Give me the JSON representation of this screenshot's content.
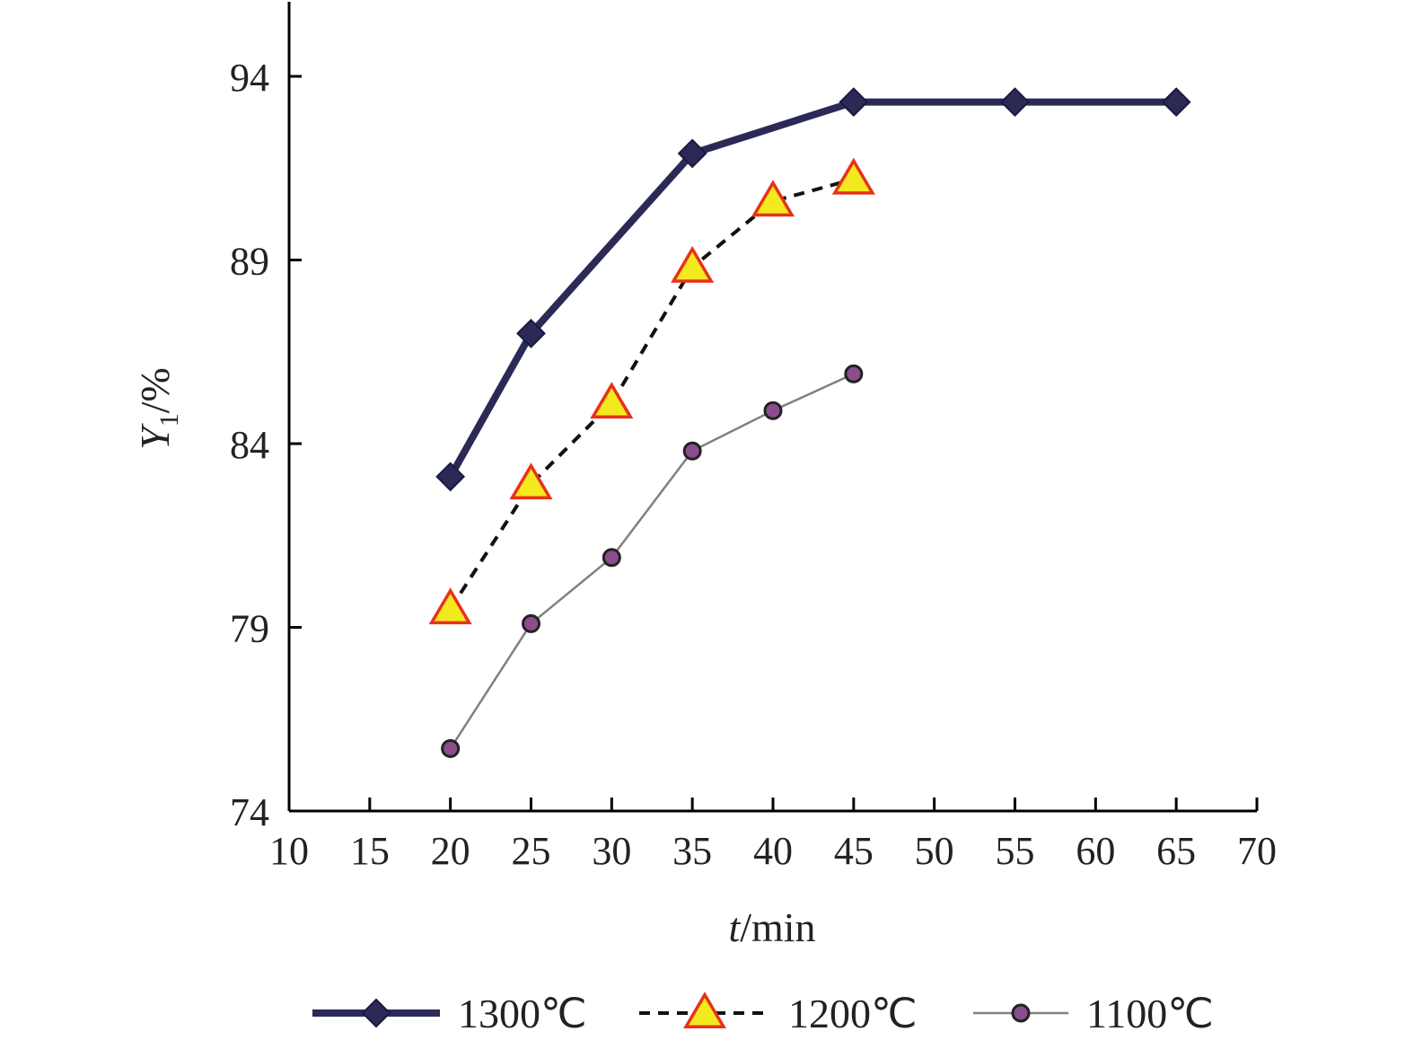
{
  "chart_data": {
    "type": "line",
    "xlabel": "t/min",
    "xlabel_italic": "t",
    "xlabel_rest": "/min",
    "ylabel": "Y1/%",
    "ylabel_main": "Y",
    "ylabel_sub": "1",
    "ylabel_rest": "/%",
    "xlim": [
      10,
      70
    ],
    "ylim": [
      74,
      94
    ],
    "xticks": [
      10,
      15,
      20,
      25,
      30,
      35,
      40,
      45,
      50,
      55,
      60,
      65,
      70
    ],
    "yticks": [
      74,
      79,
      84,
      89,
      94
    ],
    "grid": false,
    "legend_position": "bottom",
    "series": [
      {
        "name": "1300℃",
        "color": "#2b2a57",
        "marker": "diamond",
        "line_style": "solid-thick",
        "x": [
          20,
          25,
          35,
          45,
          55,
          65
        ],
        "y": [
          83.1,
          87.0,
          91.9,
          93.3,
          93.3,
          93.3
        ]
      },
      {
        "name": "1200℃",
        "color": "#111111",
        "marker": "triangle",
        "marker_fill": "#f2ea1f",
        "marker_edge": "#e8321a",
        "line_style": "dashed",
        "x": [
          20,
          25,
          30,
          35,
          40,
          45
        ],
        "y": [
          79.5,
          82.9,
          85.1,
          88.8,
          90.6,
          91.2
        ]
      },
      {
        "name": "1100℃",
        "color": "#808080",
        "marker": "circle",
        "marker_fill": "#8a4d8e",
        "marker_edge": "#222222",
        "line_style": "solid-thin",
        "x": [
          20,
          25,
          30,
          35,
          40,
          45
        ],
        "y": [
          75.7,
          79.1,
          80.9,
          83.8,
          84.9,
          85.9
        ]
      }
    ]
  }
}
